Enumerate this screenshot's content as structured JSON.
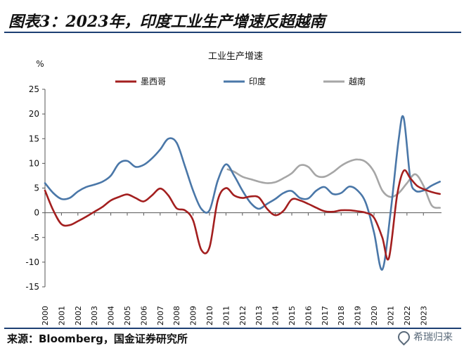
{
  "header": {
    "title": "图表3：2023年，印度工业生产增速反超越南"
  },
  "footer": {
    "source": "来源：Bloomberg，国金证券研究所",
    "watermark": "希瑞归来"
  },
  "colors": {
    "mexico": "#a31f1f",
    "india": "#4a77a8",
    "vietnam": "#a6a6a6",
    "rule": "#1d3f73"
  },
  "chart_data": {
    "type": "line",
    "title": "工业生产增速",
    "ylabel": "%",
    "xlabel": "",
    "ylim": [
      -15,
      25
    ],
    "yticks": [
      25,
      20,
      15,
      10,
      5,
      0,
      -5,
      -10,
      -15
    ],
    "xlim": [
      2000,
      2024.1
    ],
    "xticks": [
      "2000",
      "2001",
      "2002",
      "2003",
      "2004",
      "2005",
      "2006",
      "2007",
      "2008",
      "2009",
      "2010",
      "2011",
      "2012",
      "2013",
      "2014",
      "2015",
      "2016",
      "2017",
      "2018",
      "2019",
      "2020",
      "2021",
      "2022",
      "2023"
    ],
    "legend": "top",
    "series": [
      {
        "name": "墨西哥",
        "color": "#a31f1f",
        "points": [
          [
            2000,
            4.5
          ],
          [
            2000.5,
            0.5
          ],
          [
            2001,
            -2.3
          ],
          [
            2001.5,
            -2.5
          ],
          [
            2002,
            -1.7
          ],
          [
            2002.5,
            -0.8
          ],
          [
            2003,
            0.2
          ],
          [
            2003.5,
            1.2
          ],
          [
            2004,
            2.5
          ],
          [
            2004.5,
            3.2
          ],
          [
            2005,
            3.7
          ],
          [
            2005.5,
            3.0
          ],
          [
            2006,
            2.3
          ],
          [
            2006.5,
            3.5
          ],
          [
            2007,
            4.9
          ],
          [
            2007.5,
            3.5
          ],
          [
            2008,
            0.9
          ],
          [
            2008.5,
            0.5
          ],
          [
            2009,
            -1.5
          ],
          [
            2009.5,
            -7.5
          ],
          [
            2010,
            -7.0
          ],
          [
            2010.5,
            2.5
          ],
          [
            2011,
            5.0
          ],
          [
            2011.5,
            3.5
          ],
          [
            2012,
            3.0
          ],
          [
            2012.5,
            3.3
          ],
          [
            2013,
            3.1
          ],
          [
            2013.5,
            0.8
          ],
          [
            2014,
            -0.5
          ],
          [
            2014.5,
            0.4
          ],
          [
            2015,
            2.7
          ],
          [
            2015.5,
            2.5
          ],
          [
            2016,
            1.8
          ],
          [
            2016.5,
            1.0
          ],
          [
            2017,
            0.3
          ],
          [
            2017.5,
            0.2
          ],
          [
            2018,
            0.5
          ],
          [
            2018.5,
            0.5
          ],
          [
            2019,
            0.3
          ],
          [
            2019.5,
            0.0
          ],
          [
            2020,
            -1.0
          ],
          [
            2020.5,
            -5.0
          ],
          [
            2020.9,
            -9.2
          ],
          [
            2021.4,
            3.5
          ],
          [
            2021.8,
            8.5
          ],
          [
            2022.2,
            7.0
          ],
          [
            2022.6,
            5.5
          ],
          [
            2023,
            4.8
          ],
          [
            2023.5,
            4.2
          ],
          [
            2024,
            3.8
          ]
        ]
      },
      {
        "name": "印度",
        "color": "#4a77a8",
        "points": [
          [
            2000,
            6.0
          ],
          [
            2000.5,
            4.0
          ],
          [
            2001,
            2.8
          ],
          [
            2001.5,
            3.0
          ],
          [
            2002,
            4.3
          ],
          [
            2002.5,
            5.2
          ],
          [
            2003,
            5.7
          ],
          [
            2003.5,
            6.3
          ],
          [
            2004,
            7.5
          ],
          [
            2004.5,
            10.0
          ],
          [
            2005,
            10.5
          ],
          [
            2005.5,
            9.3
          ],
          [
            2006,
            9.7
          ],
          [
            2006.5,
            11.0
          ],
          [
            2007,
            12.8
          ],
          [
            2007.5,
            15.0
          ],
          [
            2008,
            14.2
          ],
          [
            2008.5,
            9.5
          ],
          [
            2009,
            4.5
          ],
          [
            2009.5,
            0.8
          ],
          [
            2010,
            0.5
          ],
          [
            2010.5,
            6.5
          ],
          [
            2011,
            9.8
          ],
          [
            2011.5,
            7.5
          ],
          [
            2012,
            4.5
          ],
          [
            2012.5,
            2.0
          ],
          [
            2013,
            0.8
          ],
          [
            2013.5,
            1.8
          ],
          [
            2014,
            2.8
          ],
          [
            2014.5,
            4.0
          ],
          [
            2015,
            4.4
          ],
          [
            2015.5,
            3.0
          ],
          [
            2016,
            2.9
          ],
          [
            2016.5,
            4.5
          ],
          [
            2017,
            5.2
          ],
          [
            2017.5,
            3.8
          ],
          [
            2018,
            4.0
          ],
          [
            2018.5,
            5.3
          ],
          [
            2019,
            4.5
          ],
          [
            2019.5,
            2.0
          ],
          [
            2020,
            -4.0
          ],
          [
            2020.5,
            -11.5
          ],
          [
            2021,
            0.0
          ],
          [
            2021.5,
            15.0
          ],
          [
            2021.8,
            19.2
          ],
          [
            2022.2,
            7.0
          ],
          [
            2022.5,
            4.5
          ],
          [
            2023,
            4.5
          ],
          [
            2023.5,
            5.5
          ],
          [
            2024,
            6.3
          ]
        ]
      },
      {
        "name": "越南",
        "color": "#a6a6a6",
        "points": [
          [
            2011.1,
            8.8
          ],
          [
            2011.5,
            8.3
          ],
          [
            2012,
            7.3
          ],
          [
            2012.5,
            6.8
          ],
          [
            2013,
            6.3
          ],
          [
            2013.5,
            6.0
          ],
          [
            2014,
            6.2
          ],
          [
            2014.5,
            7.0
          ],
          [
            2015,
            8.0
          ],
          [
            2015.5,
            9.6
          ],
          [
            2016,
            9.3
          ],
          [
            2016.5,
            7.5
          ],
          [
            2017,
            7.3
          ],
          [
            2017.5,
            8.2
          ],
          [
            2018,
            9.5
          ],
          [
            2018.5,
            10.4
          ],
          [
            2019,
            10.8
          ],
          [
            2019.5,
            10.3
          ],
          [
            2020,
            8.3
          ],
          [
            2020.5,
            4.5
          ],
          [
            2021,
            3.2
          ],
          [
            2021.5,
            4.0
          ],
          [
            2022,
            6.0
          ],
          [
            2022.5,
            7.8
          ],
          [
            2023,
            5.5
          ],
          [
            2023.5,
            1.5
          ],
          [
            2024,
            1.0
          ]
        ]
      }
    ]
  }
}
